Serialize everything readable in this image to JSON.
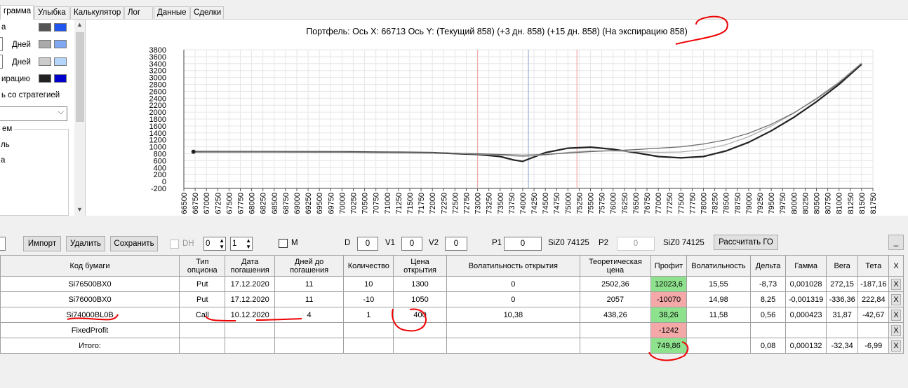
{
  "tabs": [
    "грамма",
    "Улыбка",
    "Калькулятор",
    "Лог",
    "Данные",
    "Сделки"
  ],
  "left_panel": {
    "rows": [
      {
        "label": "а",
        "c1": "#555555",
        "c2": "#2255ee"
      },
      {
        "label": "Дней",
        "c1": "#aaaaaa",
        "c2": "#7fa8f0"
      },
      {
        "label": "Дней",
        "c1": "#cccccc",
        "c2": "#b4d6fa"
      },
      {
        "label": "ирацию",
        "c1": "#222222",
        "c2": "#0000cc"
      }
    ],
    "strategy_label": "ь со стратегией",
    "group_title": "ем",
    "group_items": [
      "ль",
      "а",
      ""
    ]
  },
  "chart": {
    "title": "Портфель:  Ось X:  66713  Ось Y:   (Текущий 858)  (+3 дн. 858)  (+15 дн. 858)  (На экспирацию 858)"
  },
  "chart_data": {
    "type": "line",
    "ylim": [
      -200,
      3800
    ],
    "yticks": [
      -200,
      0,
      200,
      400,
      600,
      800,
      1000,
      1200,
      1400,
      1600,
      1800,
      2000,
      2200,
      2400,
      2600,
      2800,
      3000,
      3200,
      3400,
      3600,
      3800
    ],
    "xlim": [
      66500,
      81750
    ],
    "xtick_step": 250,
    "vlines": [
      {
        "x": 73000,
        "color": "#f0b0b0"
      },
      {
        "x": 74125,
        "color": "#9fb3d6"
      },
      {
        "x": 75200,
        "color": "#f0b0b0"
      }
    ],
    "series": [
      {
        "color": "#222222",
        "width": 2.2,
        "points": [
          [
            66713,
            858
          ],
          [
            70000,
            855
          ],
          [
            72000,
            830
          ],
          [
            73000,
            780
          ],
          [
            73500,
            720
          ],
          [
            73800,
            620
          ],
          [
            74000,
            580
          ],
          [
            74200,
            680
          ],
          [
            74500,
            830
          ],
          [
            75000,
            960
          ],
          [
            75500,
            990
          ],
          [
            76000,
            930
          ],
          [
            76500,
            830
          ],
          [
            77000,
            720
          ],
          [
            77500,
            680
          ],
          [
            78000,
            720
          ],
          [
            78500,
            880
          ],
          [
            79000,
            1130
          ],
          [
            79500,
            1460
          ],
          [
            80000,
            1850
          ],
          [
            80500,
            2300
          ],
          [
            81000,
            2800
          ],
          [
            81500,
            3380
          ]
        ]
      },
      {
        "color": "#aaaaaa",
        "width": 1.2,
        "points": [
          [
            66713,
            858
          ],
          [
            70000,
            850
          ],
          [
            72000,
            830
          ],
          [
            73000,
            790
          ],
          [
            73500,
            760
          ],
          [
            74000,
            720
          ],
          [
            74500,
            760
          ],
          [
            75000,
            840
          ],
          [
            75500,
            880
          ],
          [
            76000,
            880
          ],
          [
            76500,
            860
          ],
          [
            77000,
            840
          ],
          [
            77500,
            850
          ],
          [
            78000,
            920
          ],
          [
            78500,
            1060
          ],
          [
            79000,
            1290
          ],
          [
            79500,
            1600
          ],
          [
            80000,
            1970
          ],
          [
            80500,
            2400
          ],
          [
            81000,
            2870
          ],
          [
            81500,
            3420
          ]
        ]
      },
      {
        "color": "#666666",
        "width": 1.2,
        "points": [
          [
            66713,
            858
          ],
          [
            70000,
            850
          ],
          [
            72000,
            830
          ],
          [
            73000,
            800
          ],
          [
            73500,
            780
          ],
          [
            74000,
            760
          ],
          [
            74500,
            780
          ],
          [
            75000,
            820
          ],
          [
            75500,
            860
          ],
          [
            76000,
            890
          ],
          [
            76500,
            920
          ],
          [
            77000,
            960
          ],
          [
            77500,
            1000
          ],
          [
            78000,
            1080
          ],
          [
            78500,
            1200
          ],
          [
            79000,
            1390
          ],
          [
            79500,
            1650
          ],
          [
            80000,
            1980
          ],
          [
            80500,
            2380
          ],
          [
            81000,
            2840
          ],
          [
            81500,
            3400
          ]
        ]
      }
    ]
  },
  "controls": {
    "import": "Импорт",
    "delete": "Удалить",
    "save": "Сохранить",
    "dh_label": "DH",
    "dh_value1": "0",
    "dh_value2": "1",
    "m_label": "M",
    "d_label": "D",
    "d_value": "0",
    "v1_label": "V1",
    "v1_value": "0",
    "v2_label": "V2",
    "v2_value": "0",
    "p1_label": "P1",
    "p1_value": "0",
    "p1_ticker": "SiZ0 74125",
    "p2_label": "P2",
    "p2_value": "0",
    "p2_ticker": "SiZ0 74125",
    "calc_go": "Рассчитать ГО",
    "minimize": "_"
  },
  "table": {
    "headers": [
      "Код бумаги",
      "Тип опциона",
      "Дата погашения",
      "Дней до погашения",
      "Количество",
      "Цена открытия",
      "Волатильность открытия",
      "Теоретическая цена",
      "Профит",
      "Волатильность",
      "Дельта",
      "Гамма",
      "Вега",
      "Тета",
      "X"
    ],
    "rows": [
      [
        "Si76500BX0",
        "Put",
        "17.12.2020",
        "11",
        "10",
        "1300",
        "0",
        "2502,36",
        "12023,6",
        "15,55",
        "-8,73",
        "0,001028",
        "272,15",
        "-187,16",
        "X"
      ],
      [
        "Si76000BX0",
        "Put",
        "17.12.2020",
        "11",
        "-10",
        "1050",
        "0",
        "2057",
        "-10070",
        "14,98",
        "8,25",
        "-0,001319",
        "-336,36",
        "222,84",
        "X"
      ],
      [
        "Si74000BL0B",
        "Call",
        "10.12.2020",
        "4",
        "1",
        "400",
        "10,38",
        "438,26",
        "38,26",
        "11,58",
        "0,56",
        "0,000423",
        "31,87",
        "-42,67",
        "X"
      ],
      [
        "FixedProfit",
        "",
        "",
        "",
        "",
        "",
        "",
        "",
        "-1242",
        "",
        "",
        "",
        "",
        "",
        "X"
      ],
      [
        "Итого:",
        "",
        "",
        "",
        "",
        "",
        "",
        "",
        "749,86",
        "",
        "0,08",
        "0,000132",
        "-32,34",
        "-6,99",
        "X"
      ]
    ],
    "profit_status": [
      "pos",
      "neg",
      "pos",
      "neg",
      "pos"
    ]
  }
}
